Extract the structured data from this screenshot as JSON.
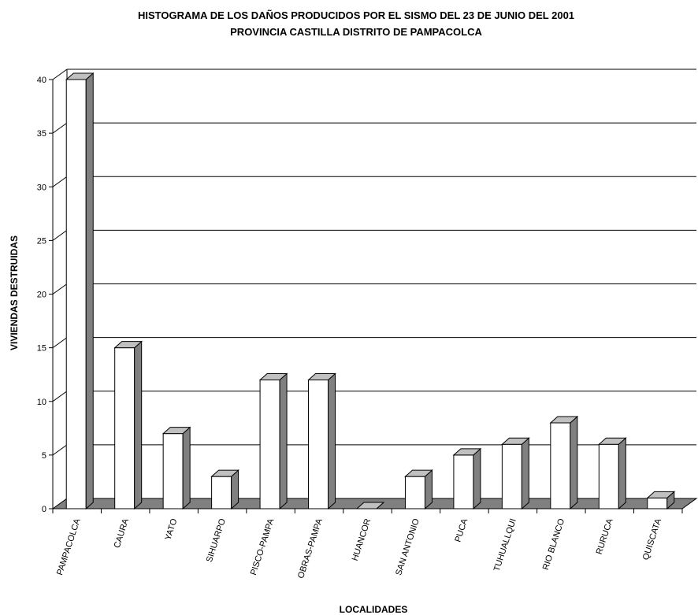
{
  "chart_data": {
    "type": "bar",
    "title": "HISTOGRAMA DE LOS DAÑOS PRODUCIDOS POR EL SISMO DEL 23 DE JUNIO DEL 2001",
    "subtitle": "PROVINCIA CASTILLA DISTRITO DE PAMPACOLCA",
    "xlabel": "LOCALIDADES",
    "ylabel": "VIVIENDAS DESTRUIDAS",
    "ylim": [
      0,
      40
    ],
    "yticks": [
      0,
      5,
      10,
      15,
      20,
      25,
      30,
      35,
      40
    ],
    "grid": true,
    "legend": "none",
    "categories": [
      "PAMPACOLCA",
      "CAURA",
      "YATO",
      "SIHUARPO",
      "PISCO-PAMPA",
      "OBRAS-PAMPA",
      "HUANCOR",
      "SAN ANTONIO",
      "PUCA",
      "TUHUALLQUI",
      "RIO BLANCO",
      "RURUCA",
      "QUISCATA"
    ],
    "values": [
      40,
      15,
      7,
      3,
      12,
      12,
      0,
      3,
      5,
      6,
      8,
      6,
      1
    ],
    "colors": {
      "bar_front": "#ffffff",
      "bar_top": "#c0c0c0",
      "bar_side": "#808080",
      "floor": "#808080",
      "grid": "#000000"
    }
  }
}
